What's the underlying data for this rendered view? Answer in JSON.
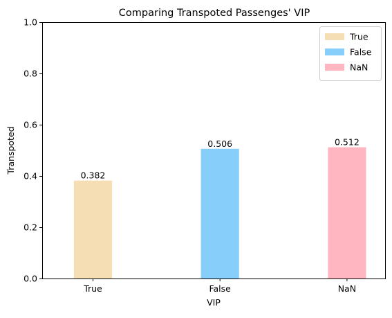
{
  "chart_data": {
    "type": "bar",
    "title": "Comparing Transpoted Passenges' VIP",
    "xlabel": "VIP",
    "ylabel": "Transpoted",
    "categories": [
      "True",
      "False",
      "NaN"
    ],
    "values": [
      0.382,
      0.506,
      0.512
    ],
    "value_labels": [
      "0.382",
      "0.506",
      "0.512"
    ],
    "colors": [
      "#f5deb3",
      "#87cefa",
      "#ffb6c1"
    ],
    "ylim": [
      0,
      1.0
    ],
    "yticks": [
      0.0,
      0.2,
      0.4,
      0.6,
      0.8,
      1.0
    ],
    "ytick_labels": [
      "0.0",
      "0.2",
      "0.4",
      "0.6",
      "0.8",
      "1.0"
    ],
    "legend": {
      "placement": "upper right",
      "entries": [
        "True",
        "False",
        "NaN"
      ]
    },
    "grid": false
  }
}
